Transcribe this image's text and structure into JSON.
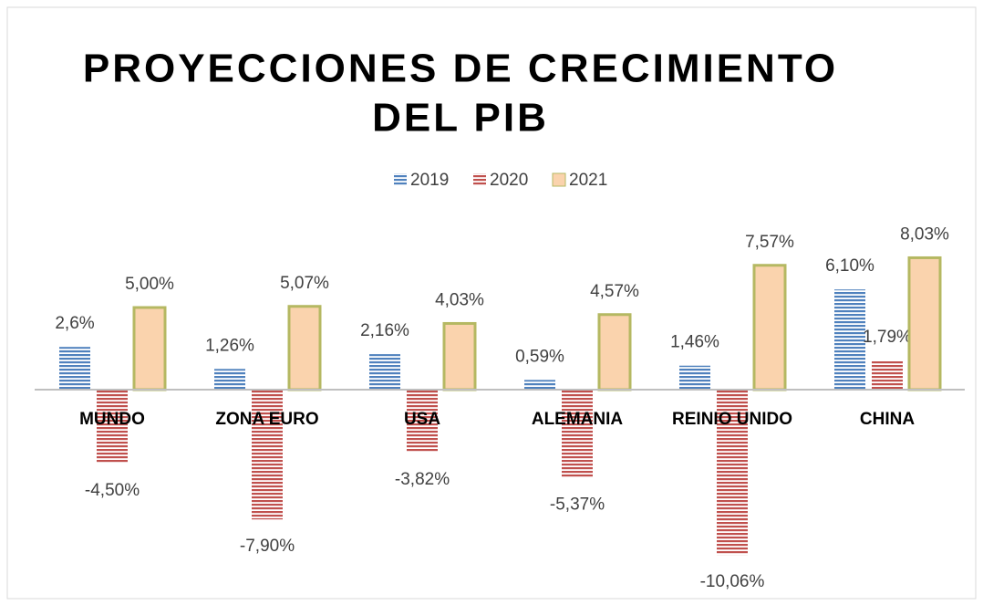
{
  "chart_data": {
    "type": "bar",
    "title": [
      "PROYECCIONES DE CRECIMIENTO",
      "DEL PIB"
    ],
    "categories": [
      "MUNDO",
      "ZONA EURO",
      "USA",
      "ALEMANIA",
      "REINIO UNIDO",
      "CHINA"
    ],
    "series": [
      {
        "name": "2019",
        "color": "#4f81bd",
        "values": [
          2.6,
          1.26,
          2.16,
          0.59,
          1.46,
          6.1
        ],
        "value_labels": [
          "2,6%",
          "1,26%",
          "2,16%",
          "0,59%",
          "1,46%",
          "6,10%"
        ]
      },
      {
        "name": "2020",
        "color": "#c0504d",
        "values": [
          -4.5,
          -7.9,
          -3.82,
          -5.37,
          -10.06,
          1.79
        ],
        "value_labels": [
          "-4,50%",
          "-7,90%",
          "-3,82%",
          "-5,37%",
          "-10,06%",
          "1,79%"
        ]
      },
      {
        "name": "2021",
        "color": "#b5b862",
        "values": [
          5.0,
          5.07,
          4.03,
          4.57,
          7.57,
          8.03
        ],
        "value_labels": [
          "5,00%",
          "5,07%",
          "4,03%",
          "4,57%",
          "7,57%",
          "8,03%"
        ]
      }
    ],
    "ylim": [
      -12,
      10
    ],
    "legend": "top"
  }
}
